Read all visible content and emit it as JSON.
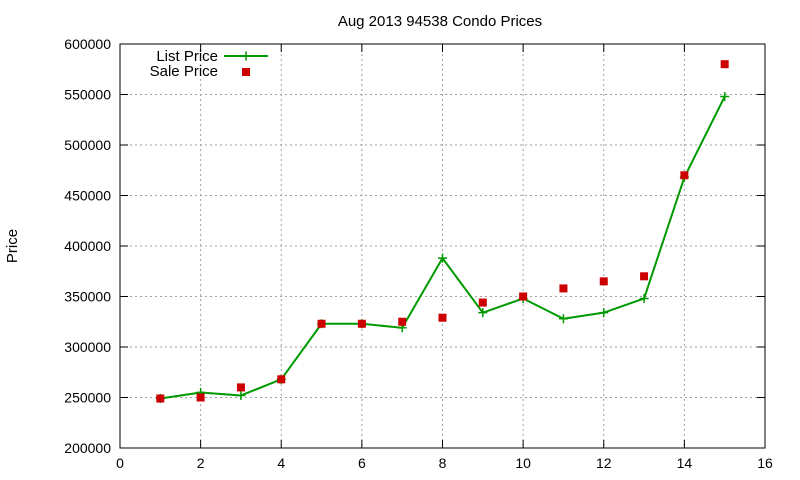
{
  "chart_data": {
    "type": "line",
    "title": "Aug 2013 94538 Condo Prices",
    "ylabel": "Price",
    "xlabel": "",
    "xlim": [
      0,
      16
    ],
    "ylim": [
      200000,
      600000
    ],
    "x_ticks": [
      0,
      2,
      4,
      6,
      8,
      10,
      12,
      14,
      16
    ],
    "y_ticks": [
      200000,
      250000,
      300000,
      350000,
      400000,
      450000,
      500000,
      550000,
      600000
    ],
    "grid": true,
    "legend_position": "top-left",
    "series": [
      {
        "name": "List Price",
        "style": "line-plus",
        "color": "#009900",
        "x": [
          1,
          2,
          3,
          4,
          5,
          6,
          7,
          8,
          9,
          10,
          11,
          12,
          13,
          14,
          15
        ],
        "y": [
          249000,
          255000,
          252000,
          268000,
          323000,
          323000,
          319000,
          388000,
          334000,
          348000,
          328000,
          334000,
          348000,
          468000,
          548000
        ]
      },
      {
        "name": "Sale Price",
        "style": "square",
        "color": "#cc0000",
        "x": [
          1,
          2,
          3,
          4,
          5,
          6,
          7,
          8,
          9,
          10,
          11,
          12,
          13,
          14,
          15
        ],
        "y": [
          249000,
          250000,
          260000,
          268000,
          323000,
          323000,
          325000,
          329000,
          344000,
          350000,
          358000,
          365000,
          370000,
          470000,
          580000
        ]
      }
    ]
  }
}
